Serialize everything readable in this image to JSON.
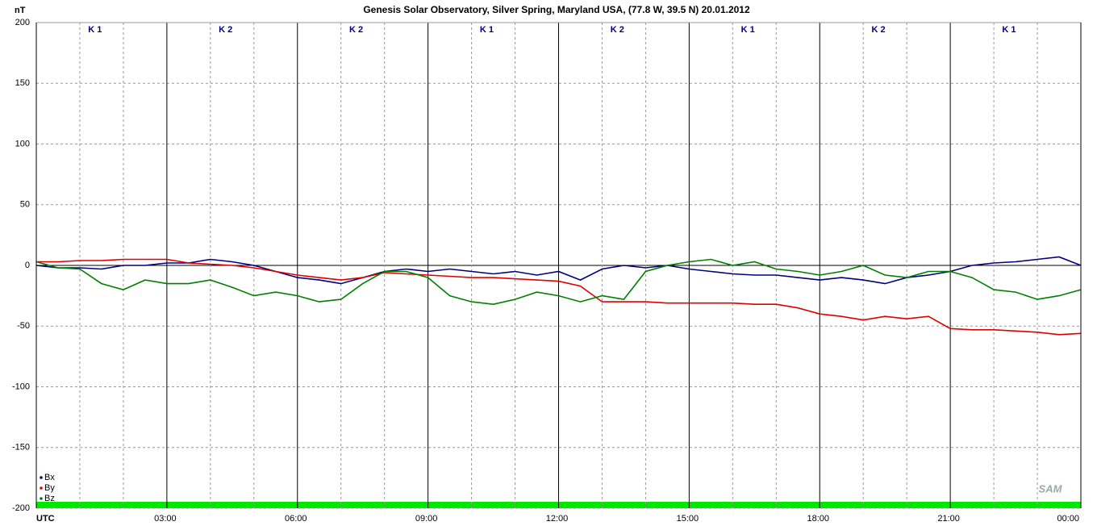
{
  "chart_data": {
    "type": "line",
    "title": "Genesis Solar Observatory, Silver Spring, Maryland USA, (77.8 W, 39.5 N)  20.01.2012",
    "ylabel": "nT",
    "logo": "SAM",
    "annotations": [
      "K 1",
      "K 2",
      "K 2",
      "K 1",
      "K 2",
      "K 1",
      "K 2",
      "K 1"
    ],
    "x": [
      0,
      0.5,
      1,
      1.5,
      2,
      2.5,
      3,
      3.5,
      4,
      4.5,
      5,
      5.5,
      6,
      6.5,
      7,
      7.5,
      8,
      8.5,
      9,
      9.5,
      10,
      10.5,
      11,
      11.5,
      12,
      12.5,
      13,
      13.5,
      14,
      14.5,
      15,
      15.5,
      16,
      16.5,
      17,
      17.5,
      18,
      18.5,
      19,
      19.5,
      20,
      20.5,
      21,
      21.5,
      22,
      22.5,
      23,
      23.5,
      24
    ],
    "series": [
      {
        "name": "Bx",
        "color": "#000080",
        "values": [
          0,
          -2,
          -2,
          -3,
          0,
          0,
          2,
          2,
          5,
          3,
          0,
          -5,
          -10,
          -12,
          -15,
          -10,
          -5,
          -3,
          -5,
          -3,
          -5,
          -7,
          -5,
          -8,
          -5,
          -12,
          -3,
          0,
          -2,
          0,
          -3,
          -5,
          -7,
          -8,
          -8,
          -10,
          -12,
          -10,
          -12,
          -15,
          -10,
          -8,
          -5,
          0,
          2,
          3,
          5,
          7,
          0
        ]
      },
      {
        "name": "By",
        "color": "#e00000",
        "values": [
          3,
          3,
          4,
          4,
          5,
          5,
          5,
          2,
          1,
          0,
          -2,
          -5,
          -8,
          -10,
          -12,
          -10,
          -6,
          -7,
          -8,
          -9,
          -10,
          -10,
          -11,
          -12,
          -13,
          -17,
          -30,
          -30,
          -30,
          -31,
          -31,
          -31,
          -31,
          -32,
          -32,
          -35,
          -40,
          -42,
          -45,
          -42,
          -44,
          -42,
          -52,
          -53,
          -53,
          -54,
          -55,
          -57,
          -56
        ]
      },
      {
        "name": "Bz",
        "color": "#008000",
        "values": [
          3,
          -2,
          -3,
          -15,
          -20,
          -12,
          -15,
          -15,
          -12,
          -18,
          -25,
          -22,
          -25,
          -30,
          -28,
          -15,
          -5,
          -5,
          -10,
          -25,
          -30,
          -32,
          -28,
          -22,
          -25,
          -30,
          -25,
          -28,
          -5,
          0,
          3,
          5,
          0,
          3,
          -3,
          -5,
          -8,
          -5,
          0,
          -8,
          -10,
          -5,
          -5,
          -10,
          -20,
          -22,
          -28,
          -25,
          -20
        ]
      }
    ],
    "xlim": [
      0,
      24
    ],
    "xticks": [
      {
        "value": 0,
        "label": "UTC"
      },
      {
        "value": 3,
        "label": "03:00"
      },
      {
        "value": 6,
        "label": "06:00"
      },
      {
        "value": 9,
        "label": "09:00"
      },
      {
        "value": 12,
        "label": "12:00"
      },
      {
        "value": 15,
        "label": "15:00"
      },
      {
        "value": 18,
        "label": "18:00"
      },
      {
        "value": 21,
        "label": "21:00"
      },
      {
        "value": 24,
        "label": "00:00"
      }
    ],
    "xminorticks": [
      1,
      2,
      4,
      5,
      7,
      8,
      10,
      11,
      13,
      14,
      16,
      17,
      19,
      20,
      22,
      23
    ],
    "ylim": [
      -200,
      200
    ],
    "yticks": [
      -200,
      -150,
      -100,
      -50,
      0,
      50,
      100,
      150,
      200
    ],
    "grid": true
  }
}
